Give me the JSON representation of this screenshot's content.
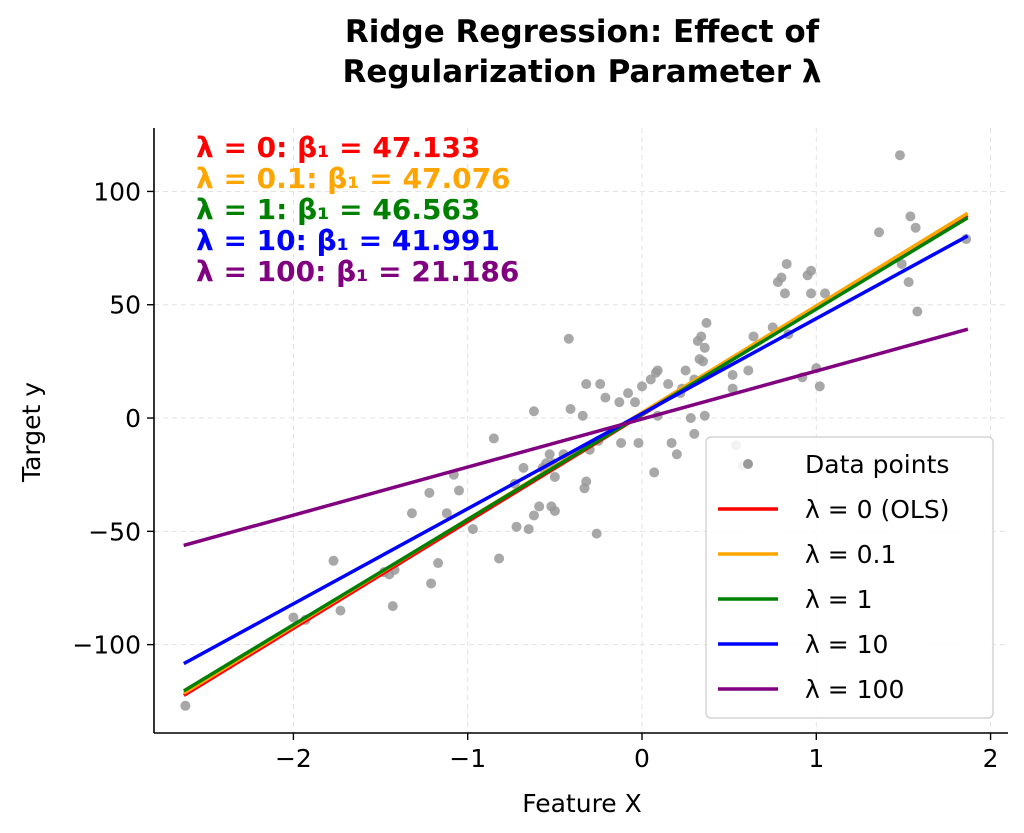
{
  "chart_data": {
    "type": "line",
    "title": "Ridge Regression: Effect of Regularization Parameter λ",
    "title_lines": [
      "Ridge Regression: Effect of",
      "Regularization Parameter λ"
    ],
    "xlabel": "Feature X",
    "ylabel": "Target y",
    "xlim": [
      -2.8,
      2.1
    ],
    "ylim": [
      -139,
      128
    ],
    "x_ticks": [
      -2,
      -1,
      0,
      1,
      2
    ],
    "x_tick_labels": [
      "−2",
      "−1",
      "0",
      "1",
      "2"
    ],
    "y_ticks": [
      -100,
      -50,
      0,
      50,
      100
    ],
    "y_tick_labels": [
      "−100",
      "−50",
      "0",
      "50",
      "100"
    ],
    "grid": true,
    "legend_position": "lower-right",
    "line_x_range": [
      -2.62,
      1.86
    ],
    "points_label": "Data points",
    "points_color": "#999999",
    "points": [
      [
        -2.62,
        -127
      ],
      [
        -2.0,
        -88
      ],
      [
        -1.93,
        -89
      ],
      [
        -1.77,
        -63
      ],
      [
        -1.73,
        -85
      ],
      [
        -1.48,
        -68
      ],
      [
        -1.45,
        -69
      ],
      [
        -1.43,
        -83
      ],
      [
        -1.42,
        -67
      ],
      [
        -1.32,
        -42
      ],
      [
        -1.22,
        -33
      ],
      [
        -1.21,
        -73
      ],
      [
        -1.17,
        -64
      ],
      [
        -1.12,
        -42
      ],
      [
        -1.08,
        -25
      ],
      [
        -1.05,
        -32
      ],
      [
        -0.97,
        -49
      ],
      [
        -0.85,
        -9
      ],
      [
        -0.82,
        -62
      ],
      [
        -0.73,
        -29
      ],
      [
        -0.72,
        -48
      ],
      [
        -0.68,
        -22
      ],
      [
        -0.65,
        -49
      ],
      [
        -0.62,
        3
      ],
      [
        -0.62,
        -43
      ],
      [
        -0.59,
        -39
      ],
      [
        -0.57,
        -22
      ],
      [
        -0.55,
        -20
      ],
      [
        -0.53,
        -16
      ],
      [
        -0.52,
        -39
      ],
      [
        -0.51,
        -20
      ],
      [
        -0.5,
        -26
      ],
      [
        -0.5,
        -41
      ],
      [
        -0.45,
        -16
      ],
      [
        -0.42,
        35
      ],
      [
        -0.41,
        4
      ],
      [
        -0.34,
        1
      ],
      [
        -0.33,
        -31
      ],
      [
        -0.32,
        -28
      ],
      [
        -0.32,
        15
      ],
      [
        -0.3,
        -14
      ],
      [
        -0.26,
        -51
      ],
      [
        -0.25,
        -10
      ],
      [
        -0.24,
        15
      ],
      [
        -0.21,
        9
      ],
      [
        -0.13,
        7
      ],
      [
        -0.12,
        -11
      ],
      [
        -0.08,
        11
      ],
      [
        -0.04,
        7
      ],
      [
        -0.02,
        -11
      ],
      [
        0.0,
        14
      ],
      [
        0.05,
        17
      ],
      [
        0.07,
        -24
      ],
      [
        0.08,
        20
      ],
      [
        0.09,
        21
      ],
      [
        0.09,
        1
      ],
      [
        0.15,
        15
      ],
      [
        0.17,
        -11
      ],
      [
        0.2,
        -16
      ],
      [
        0.22,
        11
      ],
      [
        0.23,
        13
      ],
      [
        0.25,
        21
      ],
      [
        0.28,
        0
      ],
      [
        0.3,
        -7
      ],
      [
        0.3,
        17
      ],
      [
        0.32,
        34
      ],
      [
        0.33,
        26
      ],
      [
        0.34,
        36
      ],
      [
        0.35,
        25
      ],
      [
        0.36,
        31
      ],
      [
        0.36,
        1
      ],
      [
        0.37,
        42
      ],
      [
        0.52,
        19
      ],
      [
        0.52,
        13
      ],
      [
        0.54,
        -12
      ],
      [
        0.58,
        -21
      ],
      [
        0.61,
        21
      ],
      [
        0.64,
        36
      ],
      [
        0.75,
        40
      ],
      [
        0.78,
        60
      ],
      [
        0.8,
        62
      ],
      [
        0.82,
        55
      ],
      [
        0.83,
        68
      ],
      [
        0.84,
        37
      ],
      [
        0.92,
        18
      ],
      [
        0.95,
        63
      ],
      [
        0.97,
        65
      ],
      [
        0.97,
        55
      ],
      [
        1.0,
        22
      ],
      [
        1.02,
        14
      ],
      [
        1.05,
        55
      ],
      [
        1.36,
        82
      ],
      [
        1.48,
        116
      ],
      [
        1.49,
        68
      ],
      [
        1.53,
        60
      ],
      [
        1.54,
        89
      ],
      [
        1.57,
        84
      ],
      [
        1.58,
        47
      ],
      [
        1.86,
        79
      ]
    ],
    "series": [
      {
        "name": "λ = 0 (OLS)",
        "color": "#ff0000",
        "y": [
          -122,
          89
        ]
      },
      {
        "name": "λ = 0.1",
        "color": "#ffa500",
        "y": [
          -121,
          90
        ]
      },
      {
        "name": "λ = 1",
        "color": "#008000",
        "y": [
          -120,
          88
        ]
      },
      {
        "name": "λ = 10",
        "color": "#0000ff",
        "y": [
          -108,
          80
        ]
      },
      {
        "name": "λ = 100",
        "color": "#800080",
        "y": [
          -56,
          39
        ]
      }
    ],
    "annotations": [
      {
        "text": "λ = 0: β₁ = 47.133",
        "color": "#ff0000"
      },
      {
        "text": "λ = 0.1: β₁ = 47.076",
        "color": "#ffa500"
      },
      {
        "text": "λ = 1: β₁ = 46.563",
        "color": "#008000"
      },
      {
        "text": "λ = 10: β₁ = 41.991",
        "color": "#0000ff"
      },
      {
        "text": "λ = 100: β₁ = 21.186",
        "color": "#800080"
      }
    ]
  }
}
